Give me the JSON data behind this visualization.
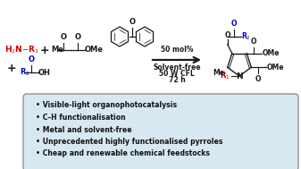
{
  "background_color": "#ffffff",
  "box_fill": "#d8e8f0",
  "box_edge": "#888888",
  "bullet_points": [
    "Visible-light organophotocatalysis",
    "C–H functionalisation",
    "Metal and solvent-free",
    "Unprecedented highly functionalised pyrroles",
    "Cheap and renewable chemical feedstocks"
  ],
  "r1_color": "#cc0000",
  "r2_color": "#0000cc",
  "o_color": "#0000cc",
  "black": "#1a1a1a"
}
